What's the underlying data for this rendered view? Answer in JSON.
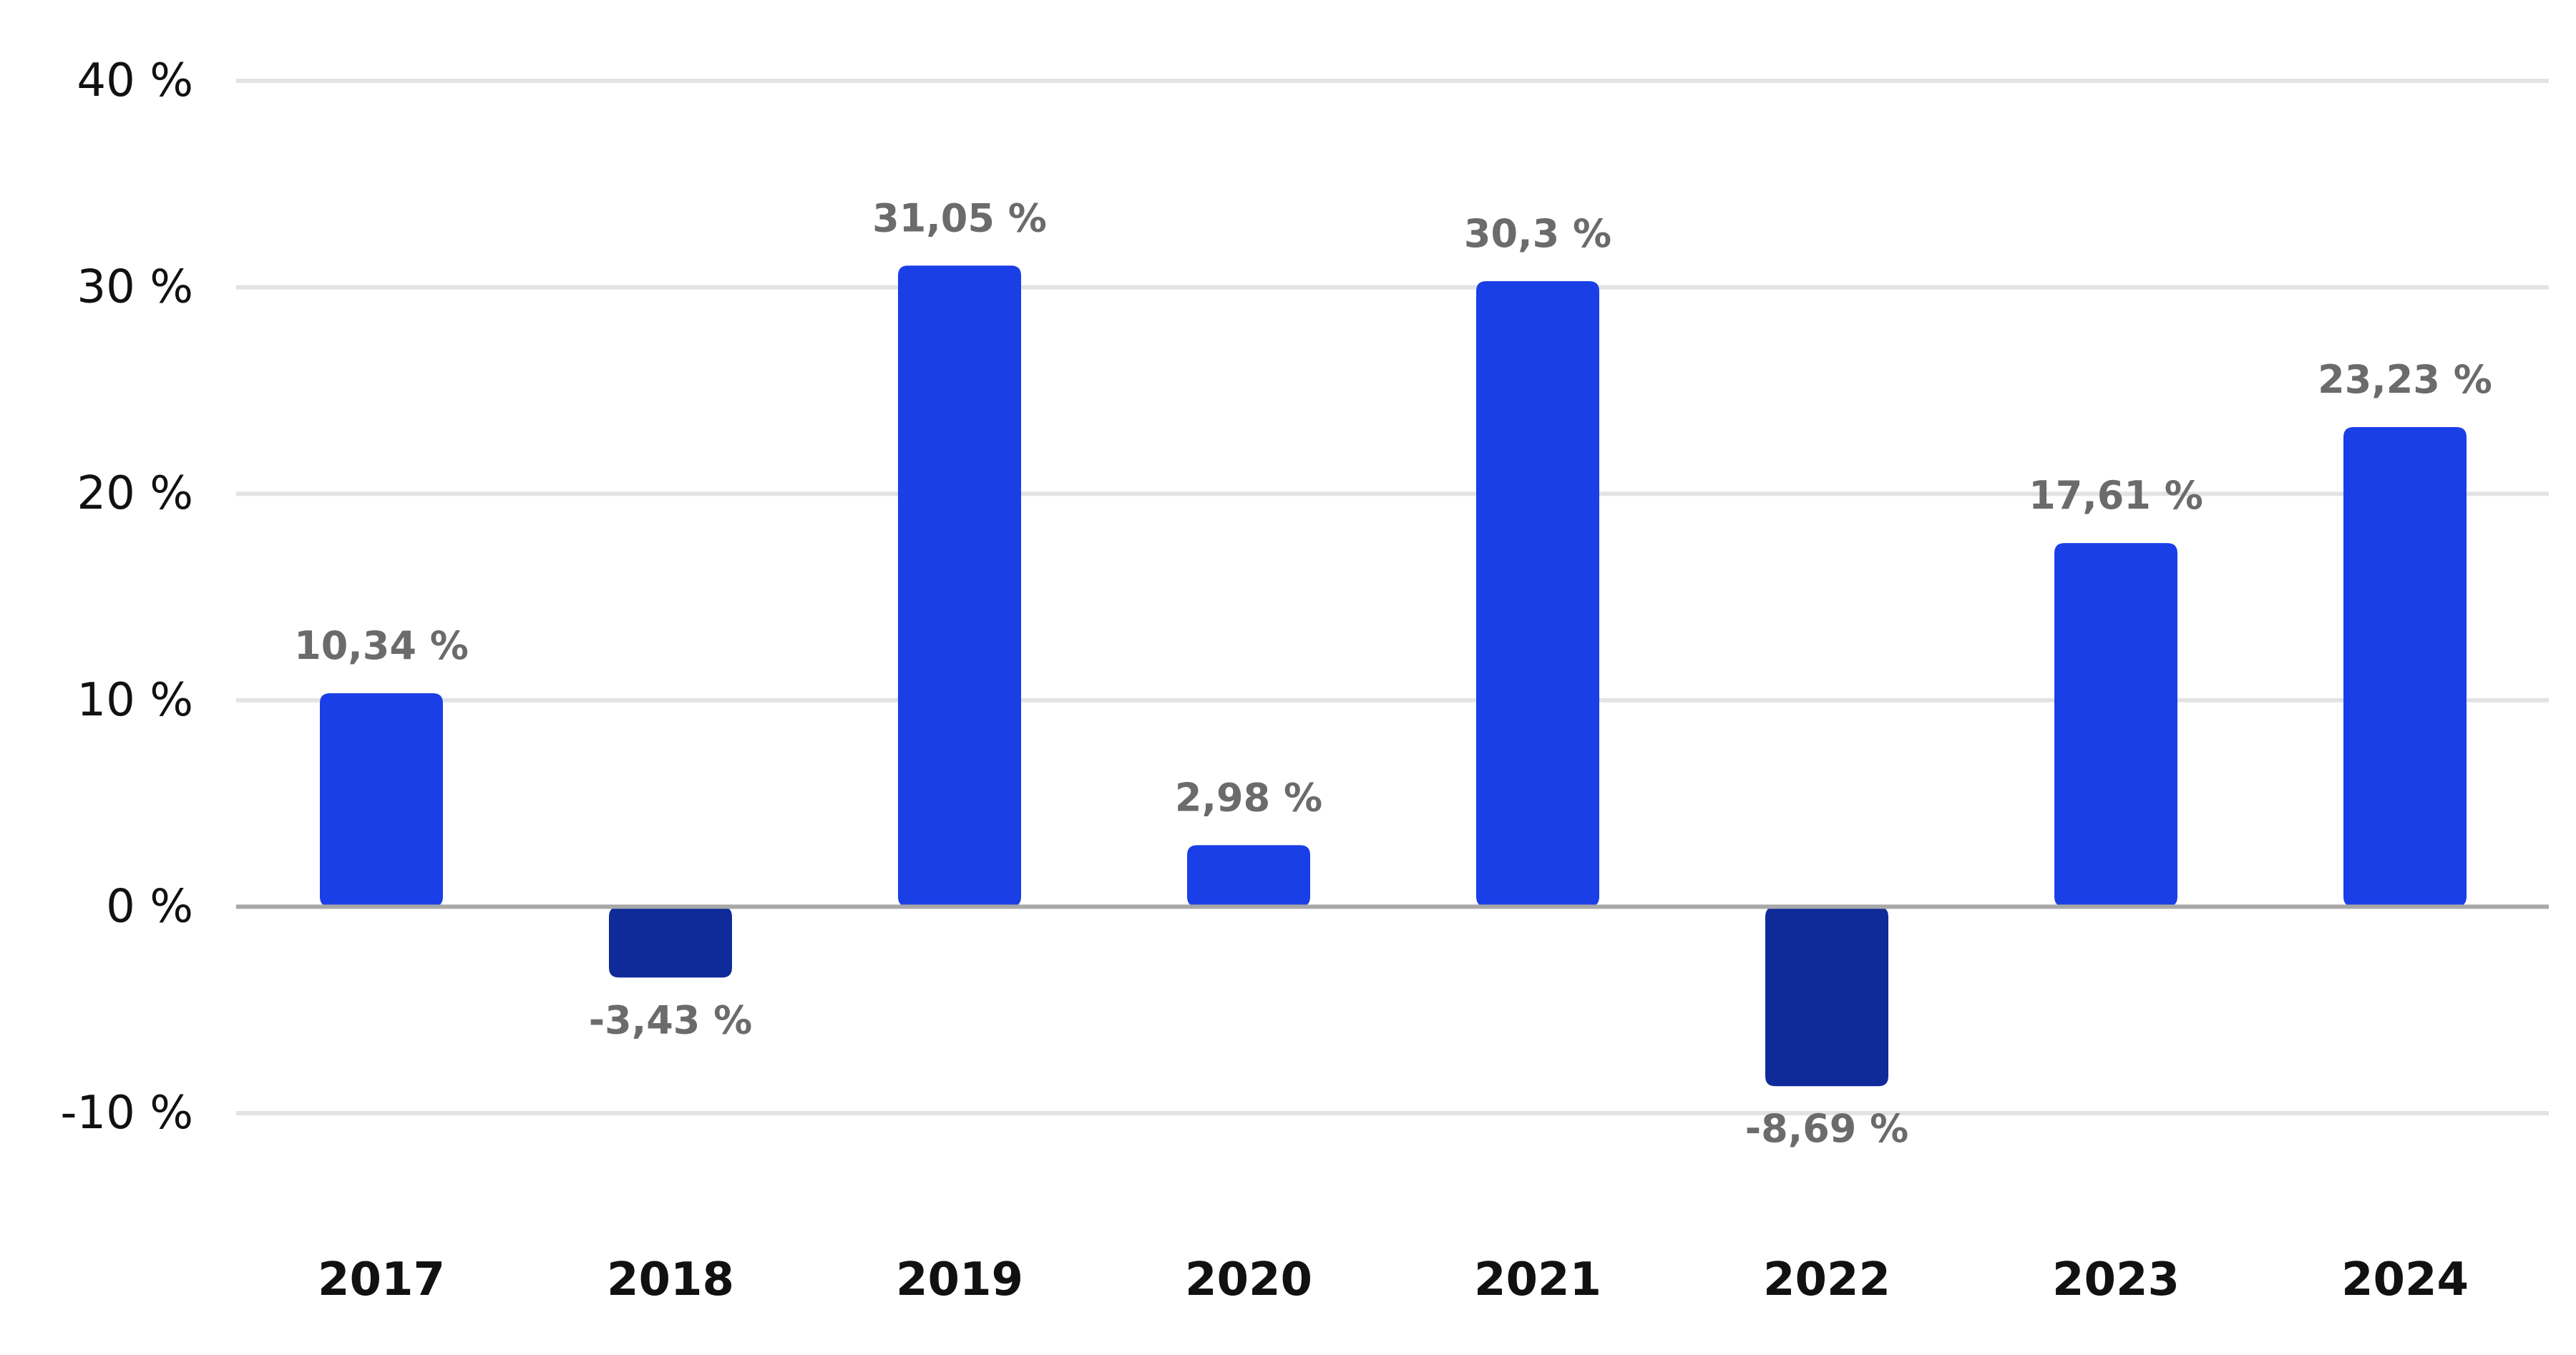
{
  "chart_data": {
    "type": "bar",
    "title": "",
    "xlabel": "",
    "ylabel": "",
    "categories": [
      "2017",
      "2018",
      "2019",
      "2020",
      "2021",
      "2022",
      "2023",
      "2024"
    ],
    "values": [
      10.34,
      -3.43,
      31.05,
      2.98,
      30.3,
      -8.69,
      17.61,
      23.23
    ],
    "value_labels": [
      "10,34 %",
      "-3,43 %",
      "31,05 %",
      "2,98 %",
      "30,3 %",
      "-8,69 %",
      "17,61 %",
      "23,23 %"
    ],
    "ylim": [
      -10,
      40
    ],
    "y_ticks": [
      -10,
      0,
      10,
      20,
      30,
      40
    ],
    "y_tick_labels": [
      "-10 %",
      "0 %",
      "10 %",
      "20 %",
      "30 %",
      "40 %"
    ],
    "grid": true,
    "legend": "none",
    "colors": {
      "positive_bar": "#1a3fe6",
      "negative_bar": "#0f2a99",
      "gridline": "#e3e3e3",
      "zero_line": "#a8a8a8",
      "tick_text": "#111111",
      "value_label_text": "#6b6b6b"
    }
  }
}
